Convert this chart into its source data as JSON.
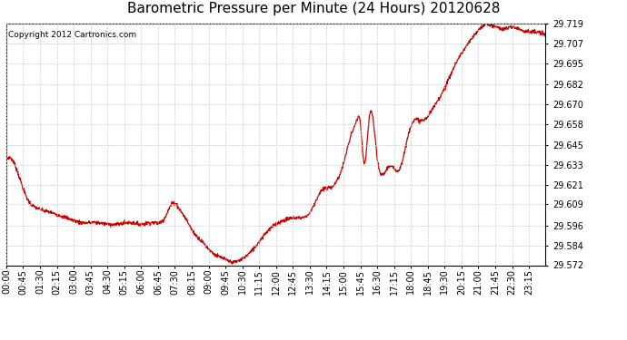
{
  "title": "Barometric Pressure per Minute (24 Hours) 20120628",
  "copyright": "Copyright 2012 Cartronics.com",
  "line_color": "#cc0000",
  "background_color": "#ffffff",
  "plot_bg_color": "#ffffff",
  "grid_color": "#cccccc",
  "yticks": [
    29.572,
    29.584,
    29.596,
    29.609,
    29.621,
    29.633,
    29.645,
    29.658,
    29.67,
    29.682,
    29.695,
    29.707,
    29.719
  ],
  "xtick_labels": [
    "00:00",
    "00:45",
    "01:30",
    "02:15",
    "03:00",
    "03:45",
    "04:30",
    "05:15",
    "06:00",
    "06:45",
    "07:30",
    "08:15",
    "09:00",
    "09:45",
    "10:30",
    "11:15",
    "12:00",
    "12:45",
    "13:30",
    "14:15",
    "15:00",
    "15:45",
    "16:30",
    "17:15",
    "18:00",
    "18:45",
    "19:30",
    "20:15",
    "21:00",
    "21:45",
    "22:30",
    "23:15"
  ],
  "ylim": [
    29.572,
    29.719
  ],
  "title_fontsize": 11,
  "tick_fontsize": 7,
  "copyright_fontsize": 6.5,
  "control_x": [
    0,
    30,
    55,
    80,
    120,
    160,
    200,
    240,
    270,
    300,
    330,
    360,
    390,
    420,
    450,
    460,
    480,
    500,
    520,
    540,
    560,
    580,
    600,
    630,
    660,
    690,
    720,
    750,
    780,
    810,
    840,
    870,
    900,
    920,
    935,
    945,
    955,
    970,
    990,
    1020,
    1050,
    1080,
    1110,
    1140,
    1170,
    1200,
    1230,
    1260,
    1285,
    1295,
    1310,
    1320,
    1350,
    1380,
    1410,
    1439
  ],
  "control_y": [
    29.636,
    29.629,
    29.613,
    29.607,
    29.604,
    29.601,
    29.598,
    29.598,
    29.597,
    29.597,
    29.598,
    29.597,
    29.598,
    29.6,
    29.61,
    29.607,
    29.6,
    29.592,
    29.587,
    29.582,
    29.578,
    29.576,
    29.574,
    29.576,
    29.582,
    29.591,
    29.597,
    29.6,
    29.601,
    29.604,
    29.617,
    29.62,
    29.634,
    29.651,
    29.66,
    29.658,
    29.634,
    29.664,
    29.637,
    29.632,
    29.631,
    29.657,
    29.66,
    29.668,
    29.68,
    29.695,
    29.706,
    29.715,
    29.719,
    29.718,
    29.717,
    29.716,
    29.717,
    29.715,
    29.714,
    29.712
  ]
}
